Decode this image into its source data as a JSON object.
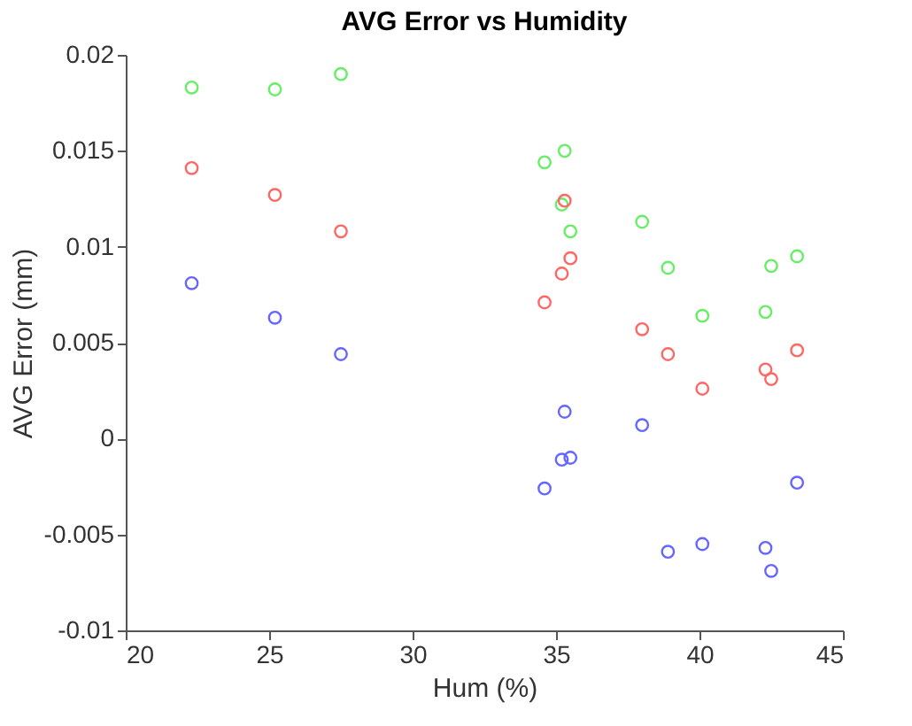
{
  "chart_data": {
    "type": "scatter",
    "title": "AVG Error vs Humidity",
    "xlabel": "Hum (%)",
    "ylabel": "AVG Error (mm)",
    "xlim": [
      20,
      45
    ],
    "xticks": [
      20,
      25,
      30,
      35,
      40,
      45
    ],
    "ylim": [
      -0.01,
      0.02
    ],
    "yticks": [
      -0.01,
      -0.005,
      0,
      0.005,
      0.01,
      0.015,
      0.02
    ],
    "marker": "circle",
    "grid": false,
    "legend": false,
    "series": [
      {
        "color": "#66ee66",
        "x": [
          22.3,
          25.2,
          27.5,
          34.6,
          35.3,
          35.2,
          35.5,
          38.0,
          38.9,
          40.1,
          42.3,
          42.5,
          43.4
        ],
        "values": [
          0.0183,
          0.0182,
          0.019,
          0.0144,
          0.015,
          0.0122,
          0.0108,
          0.0113,
          0.0089,
          0.0064,
          0.0066,
          0.009,
          0.0095
        ]
      },
      {
        "color": "#ff6666",
        "x": [
          22.3,
          25.2,
          27.5,
          35.3,
          35.5,
          35.2,
          34.6,
          38.0,
          38.9,
          40.1,
          42.3,
          42.5,
          43.4
        ],
        "values": [
          0.0141,
          0.0127,
          0.0108,
          0.0124,
          0.0094,
          0.0086,
          0.0071,
          0.0057,
          0.0044,
          0.0026,
          0.0036,
          0.0031,
          0.0046
        ]
      },
      {
        "color": "#6666ff",
        "x": [
          22.3,
          25.2,
          27.5,
          35.3,
          35.5,
          35.2,
          34.6,
          38.0,
          38.9,
          40.1,
          42.3,
          42.5,
          43.4
        ],
        "values": [
          0.0081,
          0.0063,
          0.0044,
          0.0014,
          -0.001,
          -0.0011,
          -0.0026,
          0.0007,
          -0.0059,
          -0.0055,
          -0.0057,
          -0.0069,
          -0.0023
        ]
      }
    ]
  }
}
